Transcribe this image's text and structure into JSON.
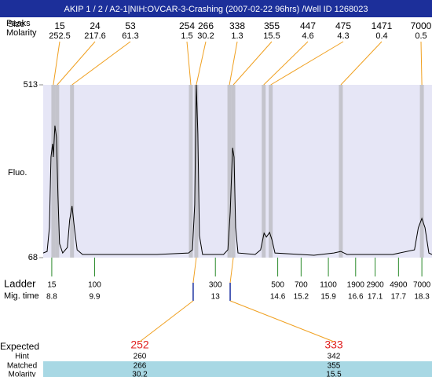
{
  "chart_data": {
    "type": "electropherogram",
    "title": "AKIP 1 / 2 / A2-1|NIH:OVCAR-3-Crashing (2007-02-22 96hrs) /Well ID 1268023",
    "peak_labels": [
      "Peaks",
      "Size",
      "Molarity"
    ],
    "ylabel": "Fluo.",
    "xlim": [
      8.58,
      18.56
    ],
    "ylim": [
      68,
      513
    ],
    "yticks": [
      68,
      513
    ],
    "background": "#e6e6f6",
    "trace_color": "#000000",
    "band_color": "#c4c4cc",
    "peak_line_color": "#f0a020",
    "peaks": {
      "size": [
        15,
        24,
        53,
        254,
        266,
        338,
        355,
        447,
        475,
        1471,
        7000
      ],
      "molarity": [
        252.5,
        217.6,
        61.3,
        1.5,
        30.2,
        1.3,
        15.5,
        4.6,
        4.3,
        0.4,
        0.5
      ],
      "time": [
        8.84,
        8.94,
        9.32,
        12.37,
        12.51,
        13.36,
        13.46,
        14.24,
        14.42,
        16.22,
        18.3
      ]
    },
    "trace": {
      "x": [
        8.58,
        8.68,
        8.74,
        8.78,
        8.82,
        8.84,
        8.88,
        8.92,
        8.96,
        9.0,
        9.08,
        9.2,
        9.26,
        9.32,
        9.38,
        9.45,
        9.59,
        10.49,
        11.5,
        12.31,
        12.41,
        12.47,
        12.51,
        12.55,
        12.59,
        12.67,
        13.21,
        13.32,
        13.38,
        13.44,
        13.48,
        13.52,
        13.58,
        14.02,
        14.16,
        14.25,
        14.31,
        14.39,
        14.45,
        14.53,
        15.53,
        16.04,
        16.22,
        16.38,
        17.55,
        18.11,
        18.21,
        18.3,
        18.38,
        18.48,
        18.56
      ],
      "y": [
        80,
        84,
        145,
        327,
        361,
        327,
        408,
        378,
        226,
        104,
        80,
        94,
        165,
        201,
        145,
        88,
        76,
        76,
        76,
        80,
        88,
        205,
        513,
        387,
        125,
        76,
        76,
        88,
        185,
        351,
        327,
        145,
        80,
        76,
        88,
        131,
        121,
        133,
        115,
        80,
        74,
        80,
        84,
        76,
        76,
        88,
        145,
        169,
        145,
        80,
        76
      ]
    },
    "ladder": {
      "labels": [
        "Ladder",
        "Mig. time"
      ],
      "color": "#2a8a2a",
      "size": [
        15,
        100,
        300,
        500,
        700,
        1100,
        1900,
        2900,
        4900,
        7000
      ],
      "time": [
        8.8,
        9.9,
        13,
        14.6,
        15.2,
        15.9,
        16.6,
        17.1,
        17.7,
        18.3
      ]
    },
    "expected": {
      "labels": [
        "Expected",
        "Hint",
        "Matched",
        "Molarity"
      ],
      "color": "#e02020",
      "row_color": "#a8d8e4",
      "marker_color": "#1a30a0",
      "expected": [
        252,
        333
      ],
      "hint": [
        260,
        342
      ],
      "matched": [
        266,
        355
      ],
      "molarity": [
        30.2,
        15.5
      ]
    }
  }
}
